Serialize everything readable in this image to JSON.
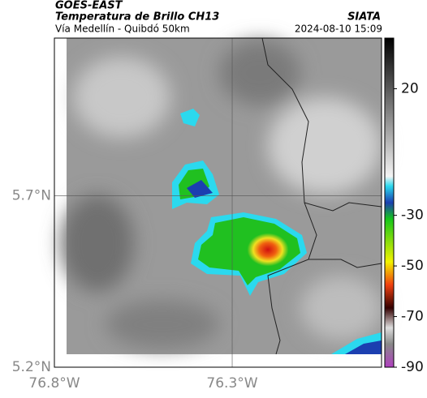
{
  "header": {
    "source": "GOES-EAST",
    "title": "Temperatura de Brillo CH13",
    "org": "SIATA",
    "subtitle": "Vía Medellín - Quibdó 50km",
    "timestamp": "2024-08-10 15:09"
  },
  "map": {
    "xlim": [
      -76.8,
      -75.88
    ],
    "ylim": [
      5.2,
      6.16
    ],
    "xticks": [
      {
        "value": -76.8,
        "label": "76.8°W"
      },
      {
        "value": -76.3,
        "label": "76.3°W"
      }
    ],
    "yticks": [
      {
        "value": 5.2,
        "label": "5.2°N"
      },
      {
        "value": 5.7,
        "label": "5.7°N"
      }
    ],
    "grid": true
  },
  "colorbar": {
    "lim": [
      -90,
      40
    ],
    "ticks": [
      20,
      -30,
      -50,
      -70,
      -90
    ]
  }
}
